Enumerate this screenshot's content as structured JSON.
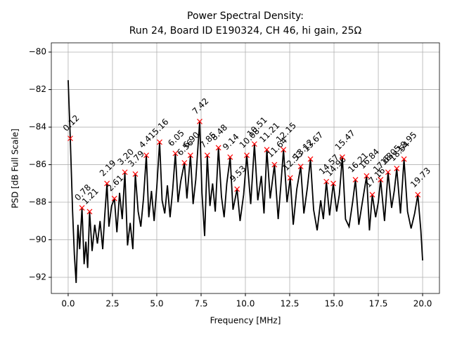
{
  "chart_data": {
    "type": "line",
    "title": "Power Spectral Density:",
    "subtitle": "Run 24, Board ID E190324, CH 46, hi gain, 25Ω",
    "xlabel": "Frequency [MHz]",
    "ylabel": "PSD [dB Full Scale]",
    "color": "#000000",
    "grid": true,
    "xlim": [
      -0.95,
      20.95
    ],
    "ylim": [
      -92.86,
      -79.51
    ],
    "xticks": [
      {
        "value": 0,
        "label": "0.0"
      },
      {
        "value": 2.5,
        "label": "2.5"
      },
      {
        "value": 5,
        "label": "5.0"
      },
      {
        "value": 7.5,
        "label": "7.5"
      },
      {
        "value": 10,
        "label": "10.0"
      },
      {
        "value": 12.5,
        "label": "12.5"
      },
      {
        "value": 15,
        "label": "15.0"
      },
      {
        "value": 17.5,
        "label": "17.5"
      },
      {
        "value": 20,
        "label": "20.0"
      }
    ],
    "yticks": [
      {
        "value": -80,
        "label": "−80"
      },
      {
        "value": -82,
        "label": "−82"
      },
      {
        "value": -84,
        "label": "−84"
      },
      {
        "value": -86,
        "label": "−86"
      },
      {
        "value": -88,
        "label": "−88"
      },
      {
        "value": -90,
        "label": "−90"
      },
      {
        "value": -92,
        "label": "−92"
      }
    ],
    "x": [
      0,
      0.12,
      0.25,
      0.35,
      0.45,
      0.55,
      0.65,
      0.78,
      0.9,
      1.0,
      1.1,
      1.21,
      1.35,
      1.5,
      1.65,
      1.8,
      1.95,
      2.05,
      2.19,
      2.3,
      2.45,
      2.61,
      2.75,
      2.9,
      3.05,
      3.2,
      3.35,
      3.5,
      3.65,
      3.79,
      3.95,
      4.1,
      4.25,
      4.41,
      4.55,
      4.7,
      4.85,
      5.0,
      5.16,
      5.3,
      5.45,
      5.6,
      5.75,
      5.9,
      6.05,
      6.2,
      6.35,
      6.56,
      6.7,
      6.9,
      7.05,
      7.2,
      7.42,
      7.55,
      7.7,
      7.85,
      8.0,
      8.15,
      8.3,
      8.48,
      8.65,
      8.8,
      8.95,
      9.14,
      9.3,
      9.53,
      9.7,
      9.9,
      10.08,
      10.3,
      10.51,
      10.7,
      10.9,
      11.05,
      11.21,
      11.4,
      11.64,
      11.85,
      12.0,
      12.15,
      12.35,
      12.53,
      12.7,
      12.9,
      13.12,
      13.3,
      13.5,
      13.67,
      13.85,
      14.05,
      14.25,
      14.4,
      14.57,
      14.75,
      14.96,
      15.15,
      15.3,
      15.47,
      15.65,
      15.85,
      16.05,
      16.21,
      16.4,
      16.6,
      16.84,
      17.0,
      17.16,
      17.35,
      17.5,
      17.63,
      17.85,
      18.05,
      18.25,
      18.4,
      18.54,
      18.75,
      18.95,
      19.15,
      19.35,
      19.55,
      19.73,
      19.9,
      20.0
    ],
    "values": [
      -81.5,
      -84.6,
      -88.5,
      -90.8,
      -92.3,
      -89.2,
      -90.5,
      -88.3,
      -91.3,
      -90.1,
      -91.5,
      -88.5,
      -90.6,
      -89.2,
      -90.2,
      -89.0,
      -90.5,
      -88.9,
      -87.0,
      -89.3,
      -88.2,
      -87.8,
      -89.6,
      -87.5,
      -88.9,
      -86.4,
      -90.3,
      -89.1,
      -90.5,
      -86.5,
      -88.5,
      -89.3,
      -87.8,
      -85.5,
      -88.8,
      -87.4,
      -89.0,
      -87.2,
      -84.8,
      -87.9,
      -88.6,
      -87.1,
      -88.8,
      -87.3,
      -85.4,
      -88.0,
      -86.9,
      -85.9,
      -87.8,
      -85.5,
      -88.1,
      -86.8,
      -83.7,
      -87.5,
      -89.8,
      -85.5,
      -88.2,
      -87.0,
      -88.5,
      -85.1,
      -87.7,
      -88.8,
      -87.0,
      -85.6,
      -88.4,
      -87.3,
      -89.0,
      -87.6,
      -85.5,
      -88.1,
      -84.9,
      -87.9,
      -86.6,
      -88.6,
      -85.2,
      -87.8,
      -86.0,
      -88.9,
      -87.1,
      -85.2,
      -88.0,
      -86.7,
      -89.2,
      -87.3,
      -86.1,
      -88.6,
      -87.2,
      -85.7,
      -88.4,
      -89.5,
      -87.9,
      -88.9,
      -86.9,
      -88.7,
      -87.0,
      -88.5,
      -87.6,
      -85.6,
      -88.9,
      -89.3,
      -88.0,
      -86.8,
      -89.2,
      -88.0,
      -86.6,
      -89.5,
      -87.6,
      -88.8,
      -88.0,
      -86.8,
      -89.0,
      -86.4,
      -88.3,
      -87.4,
      -86.2,
      -88.6,
      -85.7,
      -88.5,
      -89.4,
      -88.6,
      -87.6,
      -89.5,
      -91.1
    ],
    "peaks": {
      "color": "#ff0000",
      "x": [
        0.12,
        0.78,
        1.21,
        2.19,
        2.61,
        3.2,
        3.79,
        4.41,
        5.16,
        6.05,
        6.56,
        6.9,
        7.42,
        7.85,
        8.48,
        9.14,
        9.53,
        10.08,
        10.51,
        11.21,
        11.64,
        12.15,
        12.53,
        13.12,
        13.67,
        14.57,
        14.96,
        15.47,
        16.21,
        16.84,
        17.16,
        17.63,
        18.05,
        18.54,
        18.95,
        19.73
      ],
      "labels": [
        "0.12",
        "0.78",
        "1.21",
        "2.19",
        "2.61",
        "3.20",
        "3.79",
        "4.41",
        "5.16",
        "6.05",
        "6.56",
        "6.90",
        "7.42",
        "7.85",
        "8.48",
        "9.14",
        "9.53",
        "10.08",
        "10.51",
        "11.21",
        "11.64",
        "12.15",
        "12.53",
        "13.12",
        "13.67",
        "14.57",
        "14.96",
        "15.47",
        "16.21",
        "16.84",
        "17.16",
        "17.63",
        "18.05",
        "18.54",
        "18.95",
        "19.73"
      ],
      "values": [
        -84.6,
        -88.3,
        -88.5,
        -87.0,
        -87.8,
        -86.4,
        -86.5,
        -85.5,
        -84.8,
        -85.4,
        -85.9,
        -85.5,
        -83.7,
        -85.5,
        -85.1,
        -85.6,
        -87.3,
        -85.5,
        -84.9,
        -85.2,
        -86.0,
        -85.2,
        -86.7,
        -86.1,
        -85.7,
        -86.9,
        -87.0,
        -85.6,
        -86.8,
        -86.6,
        -87.6,
        -86.8,
        -86.4,
        -86.2,
        -85.7,
        -87.6
      ]
    }
  }
}
